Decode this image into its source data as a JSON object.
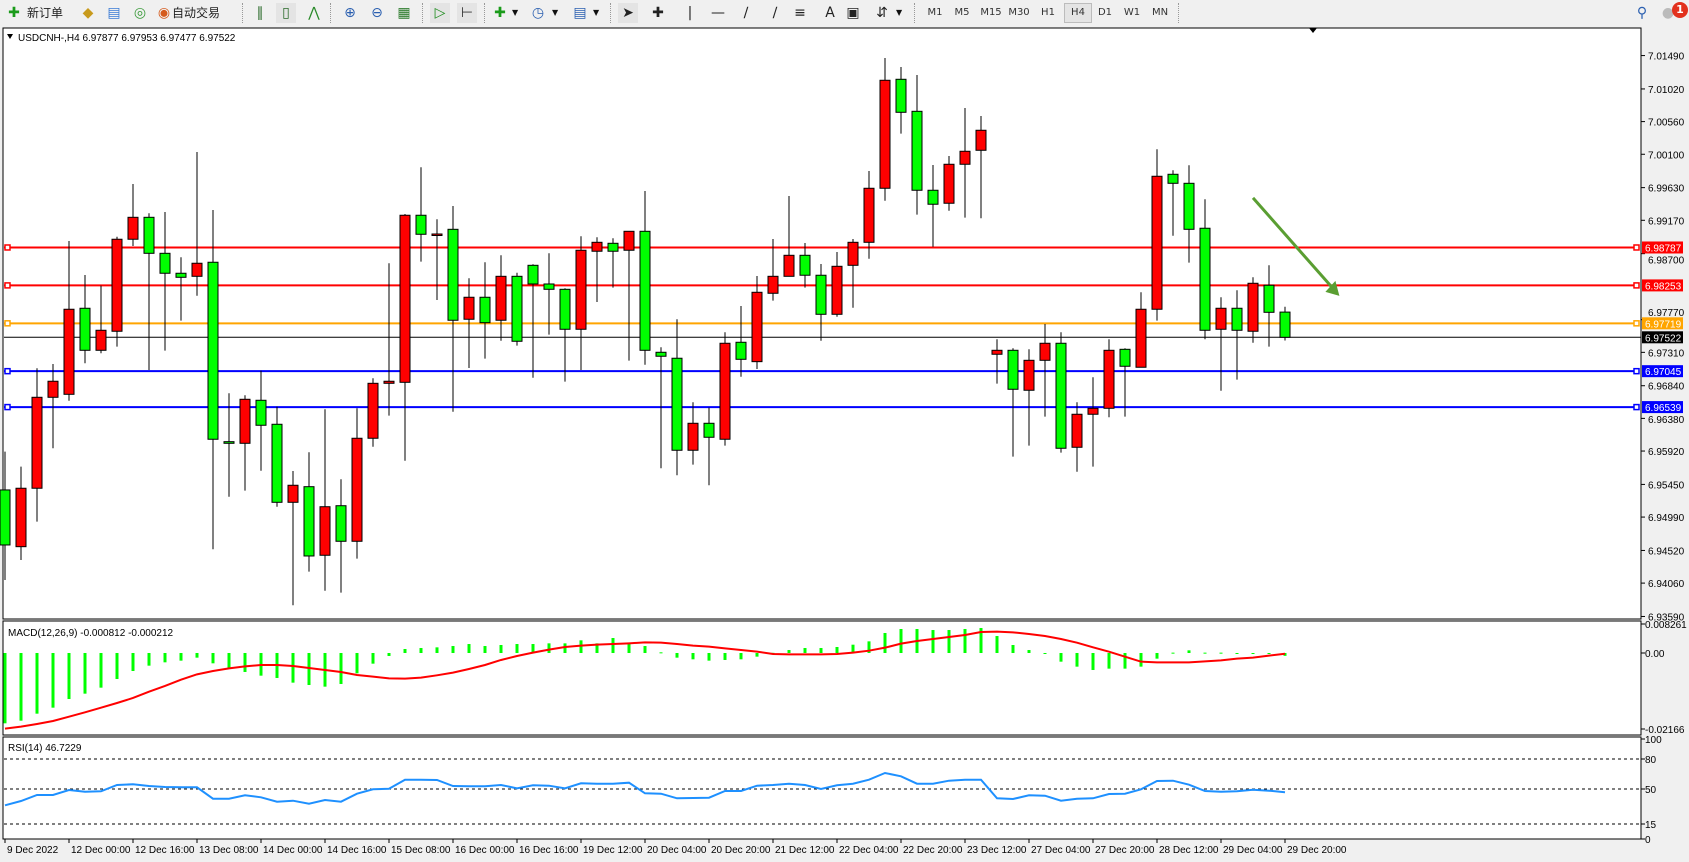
{
  "toolbar": {
    "new_order_label": "新订单",
    "auto_trading_label": "自动交易",
    "timeframes": [
      "M1",
      "M5",
      "M15",
      "M30",
      "H1",
      "H4",
      "D1",
      "W1",
      "MN"
    ],
    "active_timeframe": "H4",
    "notification_count": "1",
    "icons": [
      "new-order-icon",
      "gold-bars-icon",
      "market-watch-icon",
      "signals-icon",
      "auto-trading-icon",
      "bar-chart-icon",
      "candlestick-icon",
      "line-chart-icon",
      "zoom-in-icon",
      "zoom-out-icon",
      "tile-windows-icon",
      "auto-scroll-icon",
      "chart-shift-icon",
      "indicators-icon",
      "periods-icon",
      "templates-icon",
      "cursor-icon",
      "crosshair-icon",
      "vertical-line-icon",
      "horizontal-line-icon",
      "trendline-icon",
      "equidistant-channel-icon",
      "fibonacci-icon",
      "text-icon",
      "text-label-icon",
      "arrows-icon",
      "search-icon",
      "notifications-icon"
    ]
  },
  "chart_data": {
    "type": "candlestick",
    "title": "USDCNH-,H4  6.97877 6.97953 6.97477 6.97522",
    "symbol": "USDCNH-",
    "timeframe": "H4",
    "bull_color": "#ff0000",
    "bear_color": "#00ff00",
    "ohlc_columns": [
      "open",
      "high",
      "low",
      "close"
    ],
    "candles": [
      [
        6.95372,
        6.95911,
        6.94104,
        6.94597
      ],
      [
        6.94573,
        6.957,
        6.94386,
        6.95396
      ],
      [
        6.95396,
        6.97086,
        6.94925,
        6.96677
      ],
      [
        6.96677,
        6.97146,
        6.95959,
        6.96903
      ],
      [
        6.96719,
        6.98879,
        6.96629,
        6.97917
      ],
      [
        6.97931,
        6.984,
        6.97156,
        6.97339
      ],
      [
        6.97339,
        6.98249,
        6.97297,
        6.97621
      ],
      [
        6.97607,
        6.98939,
        6.9739,
        6.98903
      ],
      [
        6.98903,
        6.99681,
        6.98808,
        6.99212
      ],
      [
        6.99212,
        6.99269,
        6.97062,
        6.98705
      ],
      [
        6.98705,
        6.99287,
        6.97334,
        6.98424
      ],
      [
        6.98424,
        6.98649,
        6.97756,
        6.98367
      ],
      [
        6.98381,
        7.00132,
        6.98108,
        6.98565
      ],
      [
        6.98579,
        6.99315,
        6.94536,
        6.96086
      ],
      [
        6.96052,
        6.96734,
        6.95277,
        6.96029
      ],
      [
        6.96029,
        6.96705,
        6.95362,
        6.96649
      ],
      [
        6.96635,
        6.97052,
        6.95643,
        6.96283
      ],
      [
        6.96297,
        6.96545,
        6.95136,
        6.95198
      ],
      [
        6.95198,
        6.95639,
        6.93748,
        6.95438
      ],
      [
        6.95418,
        6.95903,
        6.94221,
        6.94442
      ],
      [
        6.94452,
        6.96508,
        6.93953,
        6.95136
      ],
      [
        6.9515,
        6.95522,
        6.93925,
        6.94649
      ],
      [
        6.94649,
        6.96522,
        6.94404,
        6.961
      ],
      [
        6.961,
        6.96945,
        6.95981,
        6.96874
      ],
      [
        6.96874,
        6.98565,
        6.96418,
        6.96903
      ],
      [
        6.96888,
        6.99259,
        6.95784,
        6.99241
      ],
      [
        6.99241,
        6.99917,
        6.98587,
        6.98973
      ],
      [
        6.98977,
        6.99184,
        6.98048,
        6.98977
      ],
      [
        6.99043,
        6.99372,
        6.96474,
        6.97762
      ],
      [
        6.97776,
        6.98353,
        6.9709,
        6.98086
      ],
      [
        6.98086,
        6.98579,
        6.97221,
        6.97728
      ],
      [
        6.97762,
        6.98677,
        6.97474,
        6.98381
      ],
      [
        6.98381,
        6.98432,
        6.97404,
        6.97466
      ],
      [
        6.98536,
        6.9855,
        6.96953,
        6.98273
      ],
      [
        6.98273,
        6.98705,
        6.97559,
        6.98198
      ],
      [
        6.98198,
        6.98212,
        6.96897,
        6.97635
      ],
      [
        6.97635,
        6.98945,
        6.97062,
        6.98748
      ],
      [
        6.98734,
        6.98931,
        6.98019,
        6.9886
      ],
      [
        6.98846,
        6.98917,
        6.98221,
        6.98734
      ],
      [
        6.98748,
        6.99015,
        6.97193,
        6.99015
      ],
      [
        6.99015,
        6.99583,
        6.97136,
        6.97339
      ],
      [
        6.97311,
        6.97381,
        6.95677,
        6.97255
      ],
      [
        6.97227,
        6.97776,
        6.95579,
        6.95931
      ],
      [
        6.95931,
        6.96607,
        6.95728,
        6.96311
      ],
      [
        6.96311,
        6.96531,
        6.95438,
        6.96114
      ],
      [
        6.96086,
        6.97593,
        6.95996,
        6.97438
      ],
      [
        6.97452,
        6.97963,
        6.96967,
        6.97212
      ],
      [
        6.97179,
        6.98386,
        6.97076,
        6.98156
      ],
      [
        6.98142,
        6.98907,
        6.98038,
        6.98381
      ],
      [
        6.98381,
        6.99512,
        6.98381,
        6.98677
      ],
      [
        6.98677,
        6.9885,
        6.98221,
        6.98396
      ],
      [
        6.98396,
        6.98555,
        6.97474,
        6.97846
      ],
      [
        6.97846,
        6.98724,
        6.97812,
        6.98522
      ],
      [
        6.98536,
        6.98907,
        6.97939,
        6.9886
      ],
      [
        6.9886,
        6.99865,
        6.98629,
        6.99621
      ],
      [
        6.99621,
        7.01456,
        6.99446,
        7.01142
      ],
      [
        7.01156,
        7.01329,
        7.0039,
        7.00691
      ],
      [
        7.00705,
        7.01217,
        6.99249,
        6.99593
      ],
      [
        6.99593,
        6.99949,
        6.98798,
        6.99396
      ],
      [
        6.9941,
        7.00076,
        6.99305,
        6.99959
      ],
      [
        6.99959,
        7.00752,
        6.99207,
        7.00142
      ],
      [
        7.00156,
        7.00639,
        6.99198,
        7.00438
      ],
      [
        6.97283,
        6.97494,
        6.96869,
        6.97339
      ],
      [
        6.97339,
        6.97367,
        6.95841,
        6.9679
      ],
      [
        6.96776,
        6.97353,
        6.95996,
        6.97198
      ],
      [
        6.97198,
        6.9771,
        6.96404,
        6.97438
      ],
      [
        6.97438,
        6.97593,
        6.95897,
        6.95959
      ],
      [
        6.95973,
        6.96607,
        6.95629,
        6.96438
      ],
      [
        6.96438,
        6.96959,
        6.957,
        6.96522
      ],
      [
        6.96522,
        6.97494,
        6.96396,
        6.97339
      ],
      [
        6.97353,
        6.97367,
        6.96404,
        6.97114
      ],
      [
        6.971,
        6.98156,
        6.971,
        6.97917
      ],
      [
        6.97917,
        7.0017,
        6.97756,
        6.9979
      ],
      [
        6.99818,
        6.99874,
        6.98953,
        6.99691
      ],
      [
        6.99691,
        6.99945,
        6.98573,
        6.99043
      ],
      [
        6.99058,
        6.99466,
        6.97494,
        6.97621
      ],
      [
        6.97635,
        6.98086,
        6.9677,
        6.97931
      ],
      [
        6.97931,
        6.98184,
        6.96925,
        6.97621
      ],
      [
        6.97607,
        6.98367,
        6.97446,
        6.98283
      ],
      [
        6.98255,
        6.98536,
        6.9739,
        6.97874
      ],
      [
        6.97877,
        6.97953,
        6.97477,
        6.97522
      ]
    ],
    "price_axis_ticks": [
      "7.01490",
      "7.01020",
      "7.00560",
      "7.00100",
      "6.99630",
      "6.99170",
      "6.98700",
      "6.97770",
      "6.97310",
      "6.96840",
      "6.96380",
      "6.95920",
      "6.95450",
      "6.94990",
      "6.94520",
      "6.94060",
      "6.93590"
    ],
    "horizontal_lines": [
      {
        "price": 6.98787,
        "label": "6.98787",
        "color": "#ff0000"
      },
      {
        "price": 6.98253,
        "label": "6.98253",
        "color": "#ff0000"
      },
      {
        "price": 6.97719,
        "label": "6.97719",
        "color": "#ffa500"
      },
      {
        "price": 6.97045,
        "label": "6.97045",
        "color": "#0000ff"
      },
      {
        "price": 6.96539,
        "label": "6.96539",
        "color": "#0000ff"
      }
    ],
    "bid_line": {
      "price": 6.97522,
      "label": "6.97522",
      "color": "#000000"
    },
    "arrow": {
      "color": "#5a9e32",
      "from": {
        "bar": 78,
        "price": 6.99485
      },
      "to": {
        "bar": 83.4,
        "price": 6.98105
      }
    },
    "time_labels": [
      "9 Dec 2022",
      "12 Dec 00:00",
      "12 Dec 16:00",
      "13 Dec 08:00",
      "14 Dec 00:00",
      "14 Dec 16:00",
      "15 Dec 08:00",
      "16 Dec 00:00",
      "16 Dec 16:00",
      "19 Dec 12:00",
      "20 Dec 04:00",
      "20 Dec 20:00",
      "21 Dec 12:00",
      "22 Dec 04:00",
      "22 Dec 20:00",
      "23 Dec 12:00",
      "27 Dec 04:00",
      "27 Dec 20:00",
      "28 Dec 12:00",
      "29 Dec 04:00",
      "29 Dec 20:00"
    ],
    "time_label_every_bars": 4,
    "macd": {
      "label": "MACD(12,26,9) -0.000812 -0.000212",
      "axis_labels": [
        "0.008261",
        "0.00",
        "-0.02166"
      ],
      "axis_values": [
        0.008261,
        0,
        -0.02166
      ],
      "histogram_color": "#00ff00",
      "signal_color": "#ff0000",
      "histogram": [
        -0.02004,
        -0.01928,
        -0.01729,
        -0.01558,
        -0.01311,
        -0.01159,
        -0.00988,
        -0.00741,
        -0.00513,
        -0.00361,
        -0.00266,
        -0.00218,
        -0.00133,
        -0.00294,
        -0.00437,
        -0.00541,
        -0.00646,
        -0.00712,
        -0.00845,
        -0.00912,
        -0.00959,
        -0.00883,
        -0.00579,
        -0.00304,
        -0.00085,
        0.00114,
        0.00142,
        0.00161,
        0.00199,
        0.00256,
        0.00199,
        0.00228,
        0.00256,
        0.00256,
        0.00275,
        0.00275,
        0.00361,
        0.00275,
        0.00427,
        0.00275,
        0.00199,
        0.00019,
        -0.00133,
        -0.0018,
        -0.00218,
        -0.00199,
        -0.0018,
        -0.00104,
        5e-05,
        0.00085,
        0.00142,
        0.00142,
        0.00171,
        0.00237,
        0.00332,
        0.0057,
        0.00684,
        0.00684,
        0.00655,
        0.00655,
        0.00684,
        0.00712,
        0.00484,
        0.00228,
        0.00085,
        -0.00019,
        -0.00247,
        -0.00389,
        -0.00484,
        -0.00446,
        -0.00446,
        -0.00389,
        -0.00161,
        0.0001,
        0.00076,
        0.0001,
        0.0001,
        -0.00019,
        -0.00019,
        -0.0001,
        -0.000812
      ],
      "signal": [
        -0.02156,
        -0.02099,
        -0.02023,
        -0.01938,
        -0.01814,
        -0.01691,
        -0.01558,
        -0.01425,
        -0.01282,
        -0.01102,
        -0.0094,
        -0.0076,
        -0.00608,
        -0.00513,
        -0.00437,
        -0.0038,
        -0.00342,
        -0.00342,
        -0.0037,
        -0.00427,
        -0.00484,
        -0.00541,
        -0.00627,
        -0.00674,
        -0.00722,
        -0.00731,
        -0.00703,
        -0.00636,
        -0.0056,
        -0.00456,
        -0.00342,
        -0.00199,
        -0.00085,
        0.0001,
        0.00095,
        0.00171,
        0.00209,
        0.00237,
        0.00256,
        0.00275,
        0.00304,
        0.00294,
        0.00256,
        0.00209,
        0.0018,
        0.00133,
        0.00085,
        0.00038,
        -0.00028,
        -0.00038,
        -0.00038,
        -0.00038,
        -0.00028,
        0.0001,
        0.00066,
        0.00152,
        0.00266,
        0.00342,
        0.00399,
        0.00456,
        0.00513,
        0.00598,
        0.00608,
        0.00589,
        0.00541,
        0.00484,
        0.00399,
        0.00294,
        0.00161,
        0.00038,
        -0.00104,
        -0.00247,
        -0.00266,
        -0.00266,
        -0.00266,
        -0.00237,
        -0.00209,
        -0.00161,
        -0.00133,
        -0.00076,
        -0.000212
      ]
    },
    "rsi": {
      "label": "RSI(14) 46.7229",
      "axis_labels": [
        "100",
        "80",
        "50",
        "15",
        "0"
      ],
      "axis_values": [
        100,
        80,
        50,
        15,
        0
      ],
      "levels": [
        80,
        50,
        15
      ],
      "color": "#1e90ff",
      "values": [
        33.7,
        38,
        44,
        44,
        49,
        47.3,
        47.7,
        54,
        54.7,
        53,
        52,
        51.7,
        51.7,
        40.3,
        40.3,
        43.7,
        41.7,
        37.3,
        38.3,
        35.3,
        39,
        37.3,
        45.3,
        49.7,
        50.3,
        59.3,
        59.3,
        59,
        53,
        52.7,
        52.7,
        54,
        50.7,
        53.7,
        53.3,
        50.7,
        55.7,
        55.3,
        55.3,
        56.3,
        45.7,
        45.3,
        40.7,
        41,
        41.3,
        48,
        48,
        53.3,
        54,
        55.3,
        54,
        50,
        53.7,
        55.3,
        59.3,
        66,
        62.7,
        55.3,
        55.3,
        58.3,
        59.3,
        59.3,
        40.7,
        40,
        43.7,
        43.3,
        38.3,
        40.3,
        40.7,
        45,
        45.3,
        49.7,
        58,
        58.3,
        54.3,
        48,
        47.3,
        47.7,
        49.3,
        48.3,
        46.7229
      ]
    }
  }
}
